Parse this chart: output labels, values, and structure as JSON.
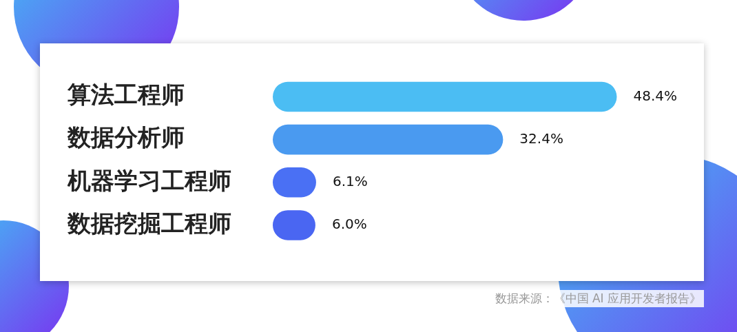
{
  "chart_data": {
    "type": "bar",
    "orientation": "horizontal",
    "categories": [
      "算法工程师",
      "数据分析师",
      "机器学习工程师",
      "数据挖掘工程师"
    ],
    "values": [
      48.4,
      32.4,
      6.1,
      6.0
    ],
    "colors": [
      "#4bbdf3",
      "#4a9af0",
      "#4a70f4",
      "#4a66f2"
    ],
    "value_labels": [
      "48.4%",
      "32.4%",
      "6.1%",
      "6.0%"
    ],
    "annotations": [
      "数据来源：《中国 AI 应用开发者报告》"
    ]
  }
}
